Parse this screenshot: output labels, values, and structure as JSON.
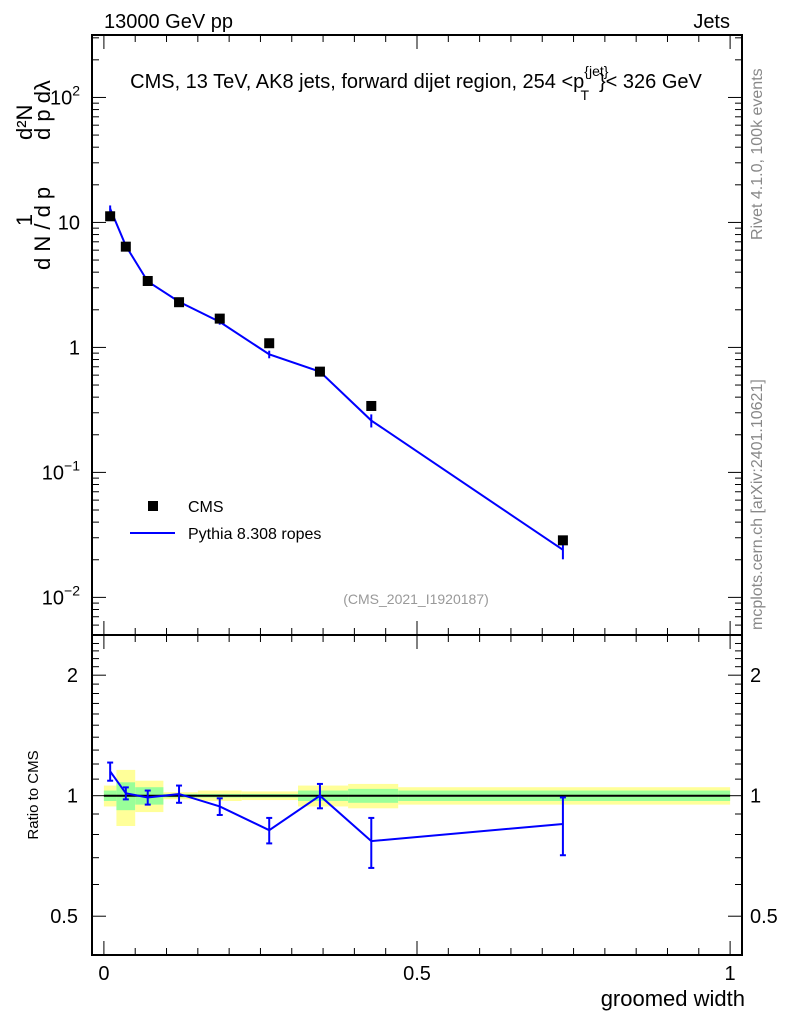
{
  "header": {
    "left": "13000 GeV pp",
    "right": "Jets"
  },
  "side_labels": {
    "rivet": "Rivet 4.1.0,  100k events",
    "mcplots": "mcplots.cern.ch [arXiv:2401.10621]"
  },
  "colors": {
    "cms": "#000000",
    "pythia": "#0000ff",
    "band_inner": "#99ff99",
    "band_outer": "#ffff99"
  },
  "chart_data": [
    {
      "type": "scatter",
      "title": "CMS, 13 TeV, AK8 jets, forward dijet region, 254 <p_T^{jet}< 326 GeV",
      "title_parts": {
        "main": "CMS, 13 TeV, AK8 jets, forward dijet region, 254 <p",
        "sup": "{jet}",
        "sub": "T",
        "end": "}< 326 GeV"
      },
      "ylabel": "1/dN/dp_T d²N/dp_T dλ",
      "ylabel_parts": {
        "a": "1",
        "b": "d N / d p",
        "c": "d²N",
        "d": "d p  dλ",
        "t": "T"
      },
      "yscale": "log",
      "xlim": [
        -0.019,
        1.019
      ],
      "ylim": [
        0.005,
        316
      ],
      "yticks": [
        {
          "v": 100,
          "base": "10",
          "exp": "2"
        },
        {
          "v": 10,
          "base": "10",
          "exp": ""
        },
        {
          "v": 1,
          "base": "1",
          "exp": ""
        },
        {
          "v": 0.1,
          "base": "10",
          "exp": "−1"
        },
        {
          "v": 0.01,
          "base": "10",
          "exp": "−2"
        }
      ],
      "annotation": "(CMS_2021_I1920187)",
      "legend": {
        "placement": "lower-left",
        "entries": [
          "CMS",
          "Pythia 8.308 ropes"
        ]
      },
      "x": [
        0.01,
        0.035,
        0.07,
        0.12,
        0.185,
        0.264,
        0.345,
        0.427,
        0.733
      ],
      "series": [
        {
          "name": "CMS",
          "values": [
            11.2,
            6.4,
            3.4,
            2.3,
            1.7,
            1.08,
            0.64,
            0.34,
            0.0286
          ]
        },
        {
          "name": "Pythia 8.308 ropes",
          "values": [
            12.9,
            6.5,
            3.37,
            2.32,
            1.6,
            0.88,
            0.64,
            0.26,
            0.024
          ],
          "err_rel": [
            0.06,
            0.03,
            0.04,
            0.03,
            0.05,
            0.07,
            0.05,
            0.12,
            0.16
          ]
        }
      ]
    },
    {
      "type": "line",
      "ylabel": "Ratio to CMS",
      "xlabel": "groomed width",
      "yscale": "log",
      "xlim": [
        -0.019,
        1.019
      ],
      "ylim": [
        0.4,
        2.52
      ],
      "yticks": [
        {
          "v": 2,
          "label": "2"
        },
        {
          "v": 1,
          "label": "1"
        },
        {
          "v": 0.5,
          "label": "0.5"
        }
      ],
      "xticks": [
        {
          "v": 0,
          "label": "0"
        },
        {
          "v": 0.5,
          "label": "0.5"
        },
        {
          "v": 1,
          "label": "1"
        }
      ],
      "x": [
        0.01,
        0.035,
        0.07,
        0.12,
        0.185,
        0.264,
        0.345,
        0.427,
        0.733
      ],
      "ratio": [
        1.15,
        1.014,
        0.99,
        1.01,
        0.94,
        0.82,
        1.0,
        0.77,
        0.85
      ],
      "ratio_err": [
        0.06,
        0.035,
        0.04,
        0.05,
        0.045,
        0.06,
        0.07,
        0.11,
        0.14
      ],
      "bands": [
        {
          "x0": 0.0,
          "x1": 0.02,
          "inner": 0.03,
          "outer": 0.06
        },
        {
          "x0": 0.02,
          "x1": 0.05,
          "inner": 0.08,
          "outer": 0.16
        },
        {
          "x0": 0.05,
          "x1": 0.095,
          "inner": 0.05,
          "outer": 0.09
        },
        {
          "x0": 0.095,
          "x1": 0.15,
          "inner": 0.01,
          "outer": 0.02
        },
        {
          "x0": 0.15,
          "x1": 0.22,
          "inner": 0.01,
          "outer": 0.03
        },
        {
          "x0": 0.22,
          "x1": 0.31,
          "inner": 0.01,
          "outer": 0.025
        },
        {
          "x0": 0.31,
          "x1": 0.39,
          "inner": 0.03,
          "outer": 0.06
        },
        {
          "x0": 0.39,
          "x1": 0.47,
          "inner": 0.04,
          "outer": 0.07
        },
        {
          "x0": 0.47,
          "x1": 1.0,
          "inner": 0.03,
          "outer": 0.05
        }
      ]
    }
  ]
}
